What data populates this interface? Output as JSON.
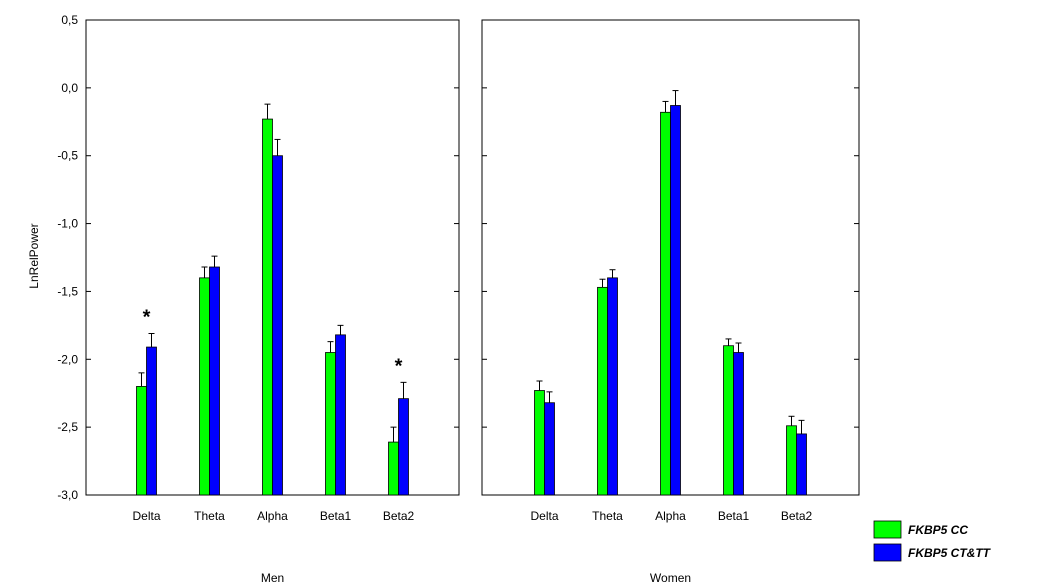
{
  "chart_data": {
    "type": "bar",
    "ylabel": "LnRelPower",
    "ylim": [
      -3.0,
      0.5
    ],
    "yticks": [
      -3.0,
      -2.5,
      -2.0,
      -1.5,
      -1.0,
      -0.5,
      0.0,
      0.5
    ],
    "ytick_labels": [
      "-3,0",
      "-2,5",
      "-2,0",
      "-1,5",
      "-1,0",
      "-0,5",
      "0,0",
      "0,5"
    ],
    "legend": {
      "placement": "bottom-right",
      "entries": [
        {
          "label": "FKBP5 CC",
          "color": "#00ff00"
        },
        {
          "label": "FKBP5 CT&TT",
          "color": "#0000ff"
        }
      ]
    },
    "panels": [
      {
        "name": "Men",
        "categories": [
          "Delta",
          "Theta",
          "Alpha",
          "Beta1",
          "Beta2"
        ],
        "series": [
          {
            "name": "FKBP5 CC",
            "color": "#00ff00",
            "values": [
              -2.2,
              -1.4,
              -0.23,
              -1.95,
              -2.61
            ],
            "errors": [
              0.1,
              0.08,
              0.11,
              0.08,
              0.11
            ]
          },
          {
            "name": "FKBP5 CT&TT",
            "color": "#0000ff",
            "values": [
              -1.91,
              -1.32,
              -0.5,
              -1.82,
              -2.29
            ],
            "errors": [
              0.1,
              0.08,
              0.12,
              0.07,
              0.12
            ]
          }
        ],
        "annotations": [
          {
            "category": "Delta",
            "text": "*"
          },
          {
            "category": "Beta2",
            "text": "*"
          }
        ]
      },
      {
        "name": "Women",
        "categories": [
          "Delta",
          "Theta",
          "Alpha",
          "Beta1",
          "Beta2"
        ],
        "series": [
          {
            "name": "FKBP5 CC",
            "color": "#00ff00",
            "values": [
              -2.23,
              -1.47,
              -0.18,
              -1.9,
              -2.49
            ],
            "errors": [
              0.07,
              0.06,
              0.08,
              0.05,
              0.07
            ]
          },
          {
            "name": "FKBP5 CT&TT",
            "color": "#0000ff",
            "values": [
              -2.32,
              -1.4,
              -0.13,
              -1.95,
              -2.55
            ],
            "errors": [
              0.08,
              0.06,
              0.11,
              0.07,
              0.1
            ]
          }
        ],
        "annotations": []
      }
    ]
  }
}
